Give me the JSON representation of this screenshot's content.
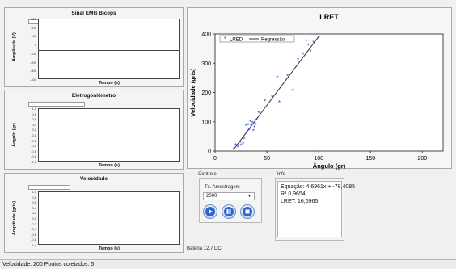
{
  "chart_emg": {
    "title": "Sinal EMG Bíceps",
    "ylabel": "Amplitude (V)",
    "xlabel": "Tempo (s)",
    "yticks": [
      "300",
      "200",
      "100",
      "0",
      "-100",
      "-200",
      "-300",
      "-400"
    ]
  },
  "chart_gonio": {
    "title": "Eletrogoniômetro",
    "ylabel": "Ângulo (gr)",
    "xlabel": "Tempo (s)",
    "yticks": [
      "1,0",
      "0,8",
      "0,6",
      "0,4",
      "0,2",
      "0,0",
      "-0,2",
      "-0,4",
      "-0,6",
      "-0,8",
      "-1,0"
    ]
  },
  "chart_vel": {
    "title": "Velocidade",
    "ylabel": "Amplitude (gr/s)",
    "xlabel": "Tempo (s)",
    "yticks": [
      "1,0",
      "0,8",
      "0,6",
      "0,4",
      "0,2",
      "0,0",
      "-0,2",
      "-0,4",
      "-0,6",
      "-0,8",
      "-1,0"
    ]
  },
  "chart_data": {
    "type": "scatter",
    "title": "LRET",
    "xlabel": "Ângulo (gr)",
    "ylabel": "Velocidade (gr/s)",
    "xlim": [
      0,
      220
    ],
    "ylim": [
      0,
      400
    ],
    "xticks": [
      0,
      50,
      100,
      150,
      200
    ],
    "yticks": [
      0,
      100,
      200,
      300,
      400
    ],
    "legend_position": "top-left",
    "series": [
      {
        "name": "LRED",
        "color": "#2f3fd6",
        "points": [
          [
            18,
            5
          ],
          [
            20,
            20
          ],
          [
            22,
            12
          ],
          [
            24,
            28
          ],
          [
            25,
            18
          ],
          [
            27,
            25
          ],
          [
            28,
            40
          ],
          [
            30,
            60
          ],
          [
            30,
            85
          ],
          [
            32,
            88
          ],
          [
            33,
            70
          ],
          [
            34,
            100
          ],
          [
            35,
            85
          ],
          [
            36,
            95
          ],
          [
            37,
            68
          ],
          [
            38,
            80
          ],
          [
            39,
            90
          ],
          [
            40,
            105
          ],
          [
            42,
            130
          ],
          [
            48,
            170
          ],
          [
            55,
            185
          ],
          [
            60,
            250
          ],
          [
            62,
            165
          ],
          [
            70,
            255
          ],
          [
            75,
            205
          ],
          [
            80,
            310
          ],
          [
            85,
            330
          ],
          [
            88,
            375
          ],
          [
            90,
            360
          ],
          [
            92,
            340
          ],
          [
            95,
            370
          ],
          [
            100,
            385
          ]
        ]
      },
      {
        "name": "Regressão",
        "color": "#333333",
        "slope": 4.6961,
        "intercept": -78.4085,
        "x_range": [
          18,
          100
        ]
      }
    ]
  },
  "controle": {
    "label": "Controle",
    "tx_label": "Tx. Amostragem",
    "tx_value": "2000"
  },
  "info": {
    "label": "Info",
    "equacao": "Equação: 4,6961x + -78,4085",
    "r2": "R² 0,9654",
    "lret": "LRET: 16,6965"
  },
  "bateria": "Bateria 12,7 DC",
  "status": "Velocidade: 200   Pontos coletados: 5"
}
